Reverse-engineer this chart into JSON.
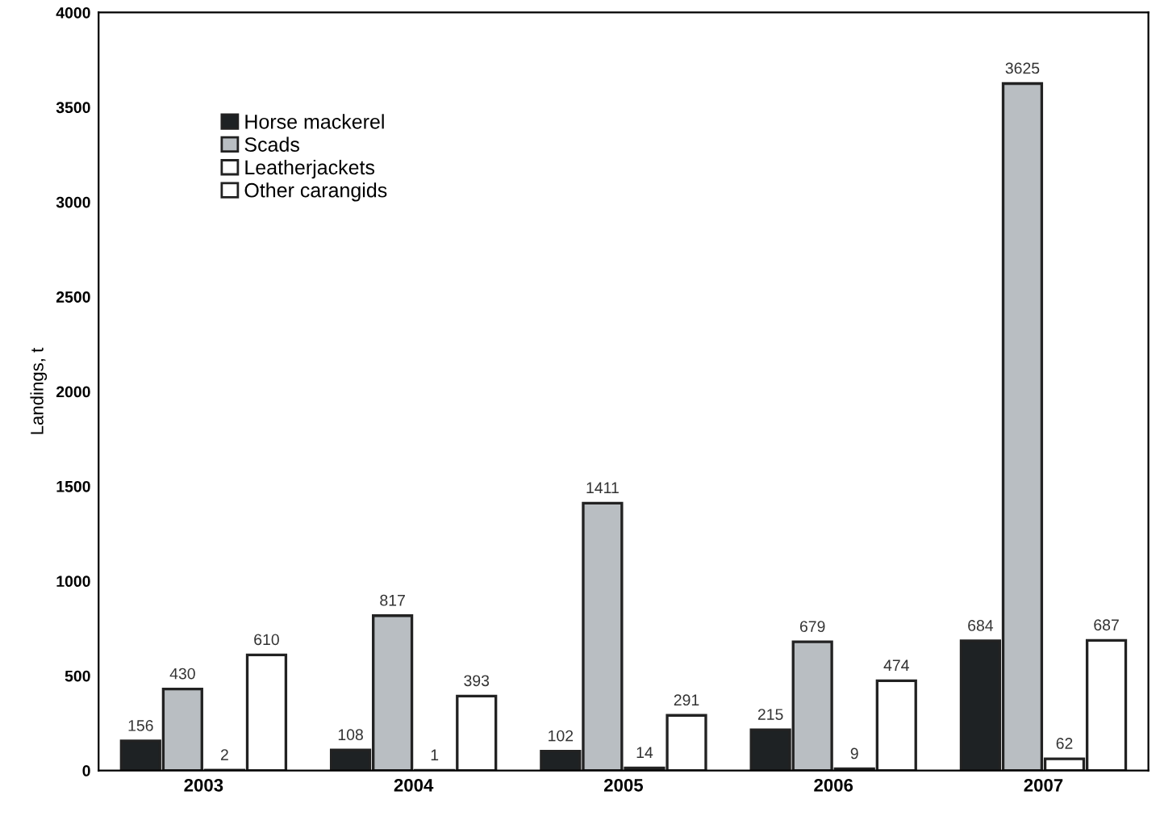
{
  "chart_data": {
    "type": "bar",
    "ylabel": "Landings, t",
    "categories": [
      "2003",
      "2004",
      "2005",
      "2006",
      "2007"
    ],
    "series": [
      {
        "name": "Horse mackerel",
        "color": "#1e2224",
        "values": [
          156,
          108,
          102,
          215,
          684
        ]
      },
      {
        "name": "Scads",
        "color": "#b9bec2",
        "values": [
          430,
          817,
          1411,
          679,
          3625
        ]
      },
      {
        "name": "Leatherjackets",
        "color": "#ffffff",
        "values": [
          2,
          1,
          14,
          9,
          62
        ]
      },
      {
        "name": "Other carangids",
        "color": "#ffffff",
        "values": [
          610,
          393,
          291,
          474,
          687
        ]
      }
    ],
    "ylim": [
      0,
      4000
    ],
    "yticks": [
      0,
      500,
      1000,
      1500,
      2000,
      2500,
      3000,
      3500,
      4000
    ],
    "data_labels": true,
    "legend": "top left",
    "grid": false
  }
}
